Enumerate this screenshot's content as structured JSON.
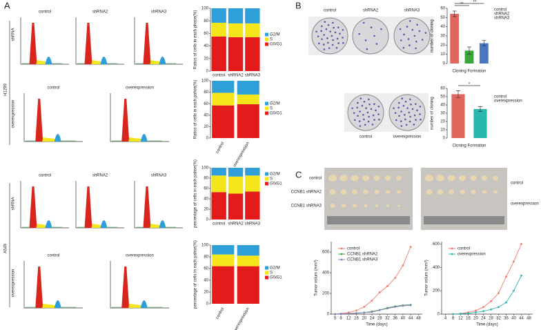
{
  "chart_data": [
    {
      "type": "bar",
      "stacked": true,
      "ylabel": "Ratios of cells in each phase(%)",
      "categories": [
        "control",
        "shRNA2",
        "shRNA3"
      ],
      "ylim": [
        0,
        100
      ],
      "yticks": [
        0,
        20,
        40,
        60,
        80,
        100
      ],
      "series": [
        {
          "name": "G0/G1",
          "color": "#e31b1b",
          "values": [
            55,
            54,
            54
          ]
        },
        {
          "name": "S",
          "color": "#f4e61a",
          "values": [
            22,
            22,
            22
          ]
        },
        {
          "name": "G2/M",
          "color": "#2e9fd8",
          "values": [
            23,
            24,
            24
          ]
        }
      ]
    },
    {
      "type": "bar",
      "stacked": true,
      "ylabel": "Ratios of cells in each pahse(%)",
      "categories": [
        "control",
        "overexpression"
      ],
      "ylim": [
        0,
        100
      ],
      "yticks": [
        0,
        20,
        40,
        60,
        80,
        100
      ],
      "series": [
        {
          "name": "G0/G1",
          "color": "#e31b1b",
          "values": [
            57,
            59
          ]
        },
        {
          "name": "S",
          "color": "#f4e61a",
          "values": [
            22,
            17
          ]
        },
        {
          "name": "G2/M",
          "color": "#2e9fd8",
          "values": [
            21,
            24
          ]
        }
      ]
    },
    {
      "type": "bar",
      "stacked": true,
      "ylabel": "percentage of cells in each pahse(%)",
      "categories": [
        "control",
        "shRNA2",
        "shRNA3"
      ],
      "ylim": [
        0,
        100
      ],
      "yticks": [
        0,
        20,
        40,
        60,
        80,
        100
      ],
      "series": [
        {
          "name": "G0/G1",
          "color": "#e31b1b",
          "values": [
            53,
            50,
            54
          ]
        },
        {
          "name": "S",
          "color": "#f4e61a",
          "values": [
            32,
            33,
            31
          ]
        },
        {
          "name": "G2/M",
          "color": "#2e9fd8",
          "values": [
            15,
            17,
            15
          ]
        }
      ]
    },
    {
      "type": "bar",
      "stacked": true,
      "ylabel": "percentage of cells in each pahse(%)",
      "categories": [
        "control",
        "overexpression"
      ],
      "ylim": [
        0,
        100
      ],
      "yticks": [
        0,
        20,
        40,
        60,
        80,
        100
      ],
      "series": [
        {
          "name": "G0/G1",
          "color": "#e31b1b",
          "values": [
            64,
            64
          ]
        },
        {
          "name": "S",
          "color": "#f4e61a",
          "values": [
            20,
            18
          ]
        },
        {
          "name": "G2/M",
          "color": "#2e9fd8",
          "values": [
            16,
            18
          ]
        }
      ]
    },
    {
      "type": "bar",
      "ylabel": "number of cloning",
      "xlabel": "Cloning Formation",
      "categories": [
        "control",
        "shRNA2",
        "shRNA3"
      ],
      "values": [
        54,
        14,
        22
      ],
      "errors": [
        3,
        4,
        3
      ],
      "colors": [
        "#e0675e",
        "#3aa63a",
        "#4a78c0"
      ],
      "ylim": [
        0,
        60
      ],
      "yticks": [
        0,
        10,
        20,
        30,
        40,
        50,
        60
      ],
      "annotations": [
        "**",
        "**"
      ],
      "legend": "top-right"
    },
    {
      "type": "bar",
      "ylabel": "number of cloning",
      "xlabel": "Cloning Formation",
      "categories": [
        "control",
        "overexpression"
      ],
      "values": [
        53,
        35
      ],
      "errors": [
        4,
        3
      ],
      "colors": [
        "#e0675e",
        "#2ab7b0"
      ],
      "ylim": [
        0,
        60
      ],
      "yticks": [
        0,
        10,
        20,
        30,
        40,
        50,
        60
      ],
      "annotations": [
        "*"
      ],
      "legend": "top-right"
    },
    {
      "type": "line",
      "ylabel": "Tumor volum (mm³)",
      "xlabel": "Time (days)",
      "x": [
        5,
        8,
        12,
        16,
        20,
        24,
        28,
        32,
        36,
        40,
        44
      ],
      "xlim": [
        3,
        50
      ],
      "xticks": [
        5,
        8,
        12,
        16,
        20,
        24,
        28,
        32,
        36,
        40,
        44,
        48
      ],
      "ylim": [
        0,
        700
      ],
      "yticks": [
        0,
        200,
        400,
        600
      ],
      "legend": "top-left",
      "series": [
        {
          "name": "control",
          "color": "#f07a6a",
          "values": [
            0,
            5,
            15,
            35,
            70,
            130,
            210,
            270,
            350,
            470,
            650
          ]
        },
        {
          "name": "CCNB1 shRNA2",
          "color": "#3aa040",
          "values": [
            0,
            2,
            5,
            10,
            15,
            25,
            40,
            60,
            75,
            85,
            90
          ]
        },
        {
          "name": "CCNB1 shRNA3",
          "color": "#8a7fc0",
          "values": [
            0,
            2,
            5,
            8,
            15,
            20,
            38,
            55,
            70,
            80,
            85
          ]
        }
      ]
    },
    {
      "type": "line",
      "ylabel": "Tumor volum (mm³)",
      "xlabel": "Time (days)",
      "x": [
        8,
        12,
        16,
        20,
        24,
        28,
        32,
        36,
        40,
        44
      ],
      "xlim": [
        2,
        50
      ],
      "xticks": [
        4,
        8,
        12,
        16,
        20,
        24,
        28,
        32,
        36,
        40,
        44,
        48
      ],
      "ylim": [
        0,
        620
      ],
      "yticks": [
        0,
        200,
        400,
        600
      ],
      "legend": "top-left",
      "series": [
        {
          "name": "control",
          "color": "#f07a6a",
          "values": [
            0,
            5,
            15,
            30,
            60,
            110,
            180,
            320,
            450,
            600
          ]
        },
        {
          "name": "overexpression",
          "color": "#2ab7b0",
          "values": [
            0,
            3,
            8,
            15,
            25,
            40,
            60,
            100,
            200,
            330
          ]
        }
      ]
    }
  ],
  "figure": {
    "panels": [
      "A",
      "B",
      "C"
    ],
    "cell_lines": [
      "H1299",
      "A549"
    ],
    "groups": [
      "shRNA",
      "overexpression",
      "shRNA",
      "overexpression"
    ],
    "histograms": [
      "control",
      "shRNA2",
      "shRNA3",
      "control",
      "overexpression",
      "control",
      "shRNA2",
      "shRNA3",
      "control",
      "overexpression"
    ],
    "plates": [
      "control",
      "shRNA2",
      "shRNA3",
      "control",
      "overexpression"
    ],
    "tumors": [
      "control",
      "CCNB1 shRNA2",
      "CCNB1 shRNA3",
      "control",
      "overexpression"
    ]
  }
}
